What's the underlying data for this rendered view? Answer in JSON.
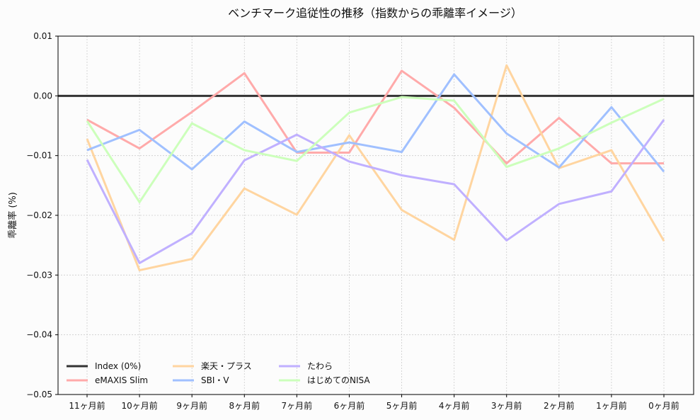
{
  "chart_data": {
    "type": "line",
    "title": "ベンチマーク追従性の推移（指数からの乖離率イメージ）",
    "xlabel": "",
    "ylabel": "乖離率 (%)",
    "ylim": [
      -0.05,
      0.01
    ],
    "yticks": [
      "0.01",
      "0.00",
      "−0.01",
      "−0.02",
      "−0.03",
      "−0.04",
      "−0.05"
    ],
    "ytick_values": [
      0.01,
      0,
      -0.01,
      -0.02,
      -0.03,
      -0.04,
      -0.05
    ],
    "grid": true,
    "legend_position": "lower-left",
    "categories": [
      "11ヶ月前",
      "10ヶ月前",
      "9ヶ月前",
      "8ヶ月前",
      "7ヶ月前",
      "6ヶ月前",
      "5ヶ月前",
      "4ヶ月前",
      "3ヶ月前",
      "2ヶ月前",
      "1ヶ月前",
      "0ヶ月前"
    ],
    "series": [
      {
        "name": "Index (0%)",
        "color": "#333333",
        "values": [
          0,
          0,
          0,
          0,
          0,
          0,
          0,
          0,
          0,
          0,
          0,
          0
        ]
      },
      {
        "name": "eMAXIS Slim",
        "color": "#ffaaaa",
        "values": [
          -0.004,
          -0.0088,
          -0.0027,
          0.0038,
          -0.0095,
          -0.0095,
          0.0042,
          -0.002,
          -0.0113,
          -0.0037,
          -0.0113,
          -0.0113
        ]
      },
      {
        "name": "楽天・プラス",
        "color": "#ffd5a0",
        "values": [
          -0.0072,
          -0.0292,
          -0.0273,
          -0.0155,
          -0.0199,
          -0.0066,
          -0.0191,
          -0.0241,
          0.0051,
          -0.0121,
          -0.0091,
          -0.0243
        ]
      },
      {
        "name": "SBI・V",
        "color": "#a0c0ff",
        "values": [
          -0.0091,
          -0.0057,
          -0.0123,
          -0.0043,
          -0.0094,
          -0.0078,
          -0.0094,
          0.0036,
          -0.0063,
          -0.012,
          -0.0019,
          -0.0127
        ]
      },
      {
        "name": "たわら",
        "color": "#c0b0ff",
        "values": [
          -0.0107,
          -0.028,
          -0.023,
          -0.0108,
          -0.0065,
          -0.011,
          -0.0133,
          -0.0148,
          -0.0242,
          -0.0181,
          -0.016,
          -0.004
        ]
      },
      {
        "name": "はじめてのNISA",
        "color": "#ccffbb",
        "values": [
          -0.0042,
          -0.0178,
          -0.0046,
          -0.0091,
          -0.0109,
          -0.0028,
          -0.0002,
          -0.0008,
          -0.0119,
          -0.0088,
          -0.0045,
          -0.0005
        ]
      }
    ]
  }
}
